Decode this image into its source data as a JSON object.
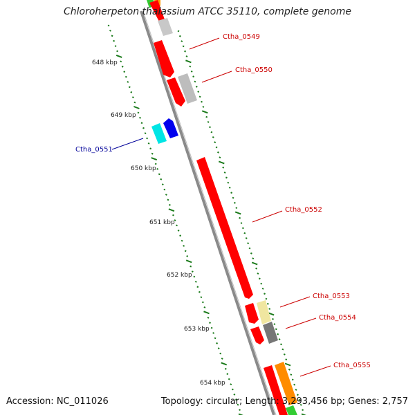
{
  "title": "Chloroherpeton thalassium ATCC 35110, complete genome",
  "accession": "Accession: NC_011026",
  "summary": "Topology: circular; Length: 3,293,456 bp; Genes: 2,757",
  "colors": {
    "backbone": "#888888",
    "tick": "#1a7a1a",
    "gene_forward": "#ff0000",
    "gene_reverse": "#0000ee",
    "label_forward": "#cc0000",
    "label_reverse": "#000099"
  },
  "scale": {
    "unit": "kbp",
    "ticks": [
      "648 kbp",
      "649 kbp",
      "650 kbp",
      "651 kbp",
      "652 kbp",
      "653 kbp",
      "654 kbp"
    ]
  },
  "genes": [
    {
      "id": "Ctha_0549",
      "strand": "+"
    },
    {
      "id": "Ctha_0550",
      "strand": "+"
    },
    {
      "id": "Ctha_0551",
      "strand": "-"
    },
    {
      "id": "Ctha_0552",
      "strand": "+"
    },
    {
      "id": "Ctha_0553",
      "strand": "+"
    },
    {
      "id": "Ctha_0554",
      "strand": "+"
    },
    {
      "id": "Ctha_0555",
      "strand": "+"
    }
  ]
}
